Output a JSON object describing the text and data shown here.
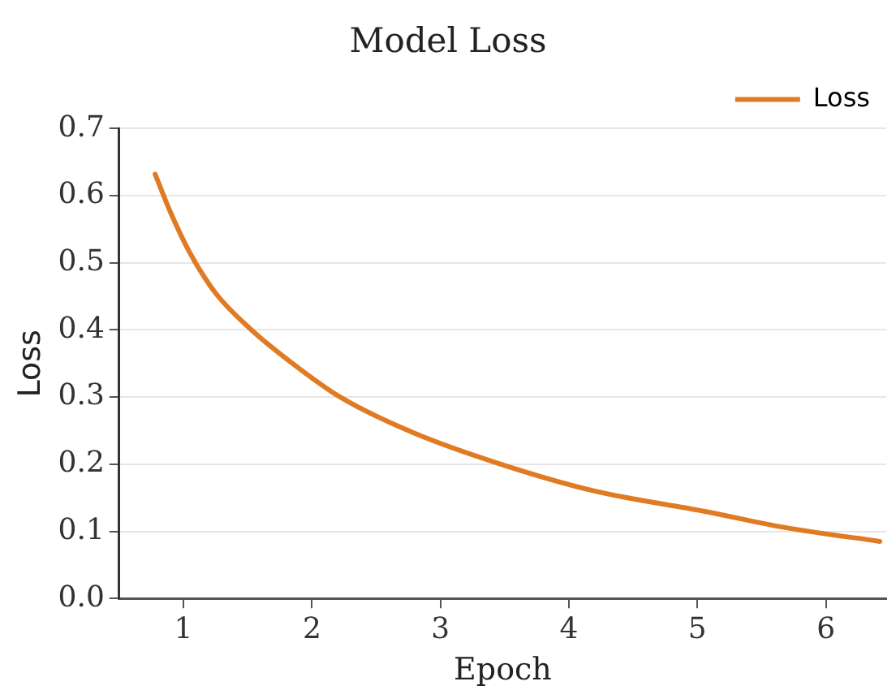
{
  "chart_data": {
    "type": "line",
    "title": "Model Loss",
    "xlabel": "Epoch",
    "ylabel": "Loss",
    "x": [
      0.78,
      0.9,
      1.05,
      1.25,
      1.53,
      1.85,
      2.22,
      2.8,
      3.47,
      4.2,
      5.05,
      5.7,
      6.42
    ],
    "series": [
      {
        "name": "Loss",
        "color": "#e07b24",
        "values": [
          0.632,
          0.575,
          0.515,
          0.455,
          0.4,
          0.35,
          0.3,
          0.246,
          0.2,
          0.16,
          0.13,
          0.105,
          0.085
        ]
      }
    ],
    "xlim": [
      0.5,
      6.47
    ],
    "xticks": [
      1,
      2,
      3,
      4,
      5,
      6
    ],
    "ylim": [
      0,
      0.7
    ],
    "yticks": [
      {
        "value": 0,
        "label": "0.0"
      },
      0.1,
      0.2,
      0.3,
      0.4,
      0.5,
      0.6,
      0.7
    ],
    "grid": "y",
    "legend": "top right",
    "marker": "none",
    "line_style": "solid"
  }
}
